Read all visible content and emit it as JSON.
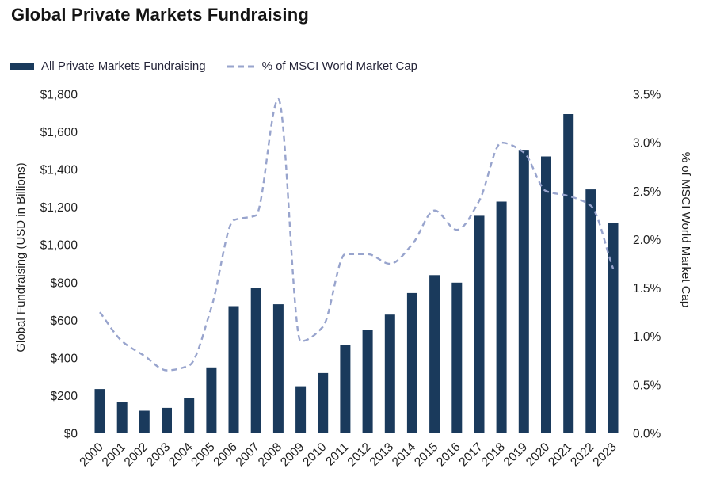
{
  "header": {
    "title": "Global Private Markets Fundraising"
  },
  "legend": {
    "bar_label": "All Private Markets Fundraising",
    "line_label": "% of MSCI World Market Cap"
  },
  "colors": {
    "bar": "#1a3a5c",
    "line": "#98a4cd",
    "title_text": "#141414",
    "tick_text": "#1f1f1f"
  },
  "chart_data": {
    "type": "bar",
    "title": "Global Private Markets Fundraising",
    "categories": [
      "2000",
      "2001",
      "2002",
      "2003",
      "2004",
      "2005",
      "2006",
      "2007",
      "2008",
      "2009",
      "2010",
      "2011",
      "2012",
      "2013",
      "2014",
      "2015",
      "2016",
      "2017",
      "2018",
      "2019",
      "2020",
      "2021",
      "2022",
      "2023"
    ],
    "series": [
      {
        "name": "All Private Markets Fundraising",
        "type": "bar",
        "axis": "left",
        "values": [
          235,
          165,
          120,
          135,
          185,
          350,
          675,
          770,
          685,
          250,
          320,
          470,
          550,
          630,
          745,
          840,
          800,
          1155,
          1230,
          1505,
          1470,
          1695,
          1295,
          1115
        ]
      },
      {
        "name": "% of MSCI World Market Cap",
        "type": "line",
        "style": "dashed",
        "axis": "right",
        "values": [
          1.25,
          0.95,
          0.8,
          0.65,
          0.7,
          1.3,
          2.2,
          2.25,
          3.45,
          0.95,
          1.1,
          1.85,
          1.85,
          1.75,
          1.95,
          2.3,
          2.1,
          2.4,
          3.0,
          2.9,
          2.5,
          2.45,
          2.35,
          1.7
        ]
      }
    ],
    "left_axis": {
      "label": "Global Fundraising (USD in Billions)",
      "min": 0,
      "max": 1800,
      "step": 200,
      "tick_prefix": "$"
    },
    "right_axis": {
      "label": "% of MSCI World Market Cap",
      "min": 0,
      "max": 3.5,
      "step": 0.5,
      "tick_suffix": "%"
    },
    "grid": false,
    "legend_position": "top-left"
  }
}
